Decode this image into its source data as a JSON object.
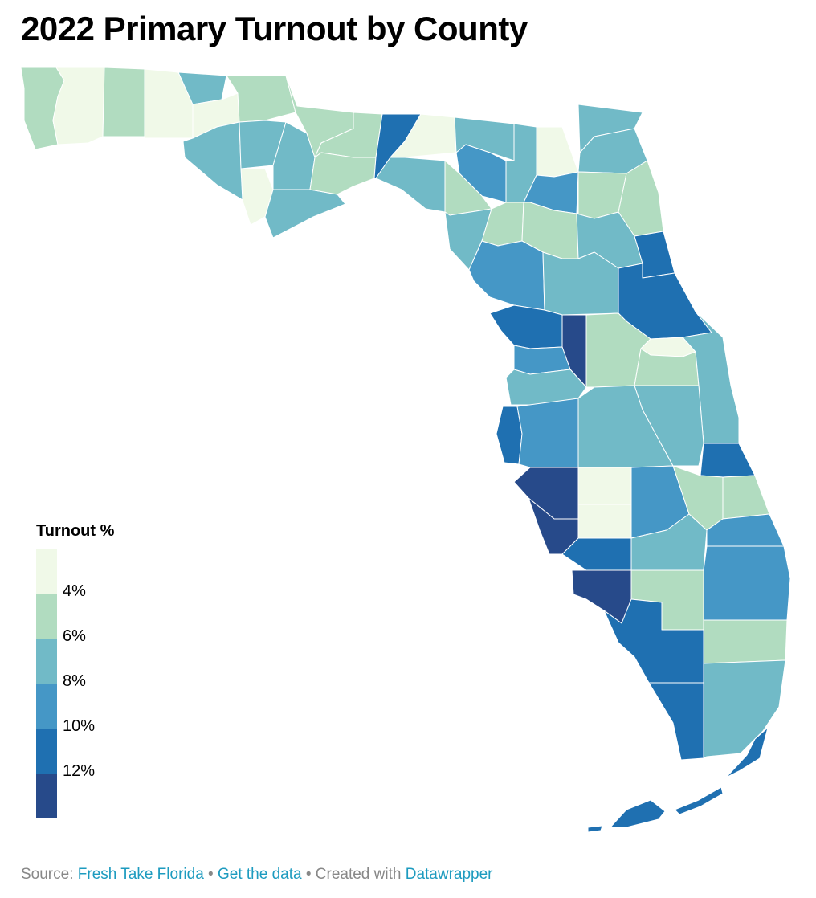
{
  "title": "2022 Primary Turnout by County",
  "legend": {
    "title": "Turnout %",
    "bins": [
      {
        "color": "#f0f9e8",
        "boundary": "4%"
      },
      {
        "color": "#b1dcc0",
        "boundary": "6%"
      },
      {
        "color": "#71bac7",
        "boundary": "8%"
      },
      {
        "color": "#4597c6",
        "boundary": "10%"
      },
      {
        "color": "#1f70b1",
        "boundary": "12%"
      },
      {
        "color": "#274a8a",
        "boundary": ""
      }
    ]
  },
  "footer": {
    "source_prefix": "Source: ",
    "source_link": "Fresh Take Florida",
    "sep1": " • ",
    "data_link": "Get the data",
    "sep2": " • Created with ",
    "tool_link": "Datawrapper"
  },
  "colors": {
    "background": "#ffffff",
    "county_stroke": "#ffffff",
    "link": "#1d9bbf",
    "footer_text": "#888888"
  }
}
